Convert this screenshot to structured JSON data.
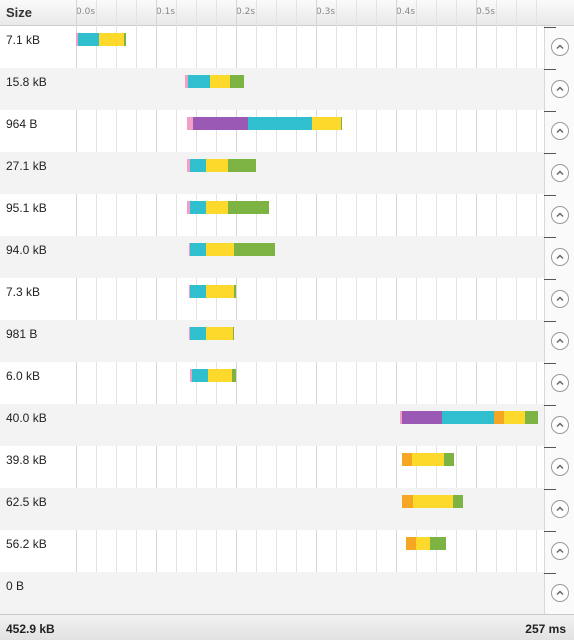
{
  "header": {
    "size_label": "Size",
    "ticks": [
      "0.0s",
      "0.1s",
      "0.2s",
      "0.3s",
      "0.4s",
      "0.5s"
    ]
  },
  "colors": {
    "pink": "#f29fc5",
    "purple": "#9b59b6",
    "teal": "#2fbfcf",
    "yellow": "#fcd92a",
    "green": "#7cb342",
    "orange": "#f5a623"
  },
  "rows": [
    {
      "size": "7.1 kB",
      "segments": [
        [
          "pink",
          0.0,
          0.003
        ],
        [
          "teal",
          0.003,
          0.029
        ],
        [
          "yellow",
          0.029,
          0.06
        ],
        [
          "green",
          0.06,
          0.062
        ]
      ]
    },
    {
      "size": "15.8 kB",
      "segments": [
        [
          "pink",
          0.136,
          0.14
        ],
        [
          "teal",
          0.14,
          0.167
        ],
        [
          "yellow",
          0.167,
          0.192
        ],
        [
          "green",
          0.192,
          0.21
        ]
      ]
    },
    {
      "size": "964 B",
      "segments": [
        [
          "pink",
          0.139,
          0.146
        ],
        [
          "purple",
          0.146,
          0.215
        ],
        [
          "teal",
          0.215,
          0.295
        ],
        [
          "yellow",
          0.295,
          0.331
        ],
        [
          "green",
          0.331,
          0.333
        ]
      ]
    },
    {
      "size": "27.1 kB",
      "segments": [
        [
          "pink",
          0.139,
          0.143
        ],
        [
          "teal",
          0.143,
          0.163
        ],
        [
          "yellow",
          0.163,
          0.19
        ],
        [
          "green",
          0.19,
          0.225
        ]
      ]
    },
    {
      "size": "95.1 kB",
      "segments": [
        [
          "pink",
          0.139,
          0.143
        ],
        [
          "teal",
          0.143,
          0.163
        ],
        [
          "yellow",
          0.163,
          0.19
        ],
        [
          "green",
          0.19,
          0.241
        ]
      ]
    },
    {
      "size": "94.0 kB",
      "segments": [
        [
          "pink",
          0.141,
          0.143
        ],
        [
          "teal",
          0.143,
          0.163
        ],
        [
          "yellow",
          0.163,
          0.198
        ],
        [
          "green",
          0.198,
          0.249
        ]
      ]
    },
    {
      "size": "7.3 kB",
      "segments": [
        [
          "pink",
          0.141,
          0.143
        ],
        [
          "teal",
          0.143,
          0.163
        ],
        [
          "yellow",
          0.163,
          0.198
        ],
        [
          "green",
          0.198,
          0.2
        ]
      ]
    },
    {
      "size": "981 B",
      "segments": [
        [
          "pink",
          0.141,
          0.143
        ],
        [
          "teal",
          0.143,
          0.163
        ],
        [
          "yellow",
          0.163,
          0.196
        ],
        [
          "green",
          0.196,
          0.198
        ]
      ]
    },
    {
      "size": "6.0 kB",
      "segments": [
        [
          "pink",
          0.143,
          0.145
        ],
        [
          "teal",
          0.145,
          0.165
        ],
        [
          "yellow",
          0.165,
          0.195
        ],
        [
          "green",
          0.195,
          0.2
        ]
      ]
    },
    {
      "size": "40.0 kB",
      "segments": [
        [
          "pink",
          0.405,
          0.408
        ],
        [
          "purple",
          0.408,
          0.458
        ],
        [
          "teal",
          0.458,
          0.522
        ],
        [
          "orange",
          0.522,
          0.535
        ],
        [
          "yellow",
          0.535,
          0.561
        ],
        [
          "green",
          0.561,
          0.577
        ]
      ]
    },
    {
      "size": "39.8 kB",
      "segments": [
        [
          "orange",
          0.407,
          0.42
        ],
        [
          "yellow",
          0.42,
          0.46
        ],
        [
          "green",
          0.46,
          0.473
        ]
      ]
    },
    {
      "size": "62.5 kB",
      "segments": [
        [
          "orange",
          0.408,
          0.421
        ],
        [
          "yellow",
          0.421,
          0.471
        ],
        [
          "green",
          0.471,
          0.484
        ]
      ]
    },
    {
      "size": "56.2 kB",
      "segments": [
        [
          "orange",
          0.412,
          0.425
        ],
        [
          "yellow",
          0.425,
          0.442
        ],
        [
          "green",
          0.442,
          0.463
        ]
      ]
    },
    {
      "size": "0 B",
      "segments": []
    }
  ],
  "footer": {
    "total_size": "452.9 kB",
    "total_time": "257 ms"
  }
}
